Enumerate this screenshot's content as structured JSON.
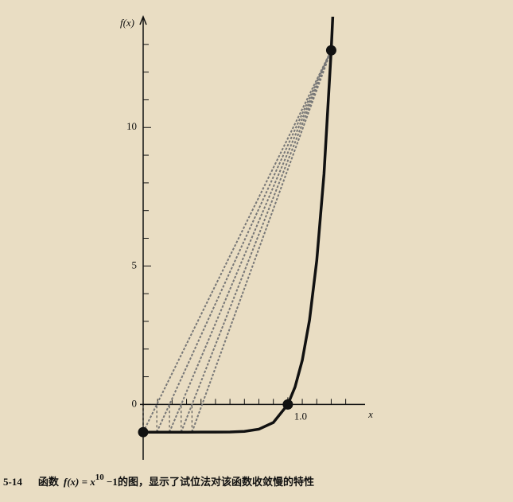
{
  "chart_data": {
    "type": "line",
    "xlabel": "x",
    "ylabel": "f(x)",
    "xlim": [
      0,
      1.6
    ],
    "ylim": [
      -2,
      14
    ],
    "xticks": [
      {
        "value": 1,
        "label": "1.0"
      }
    ],
    "xminorticks": [
      0.1,
      0.2,
      0.3,
      0.4,
      0.5,
      0.6,
      0.7,
      0.8,
      0.9,
      1,
      1.1,
      1.2,
      1.3,
      1.4
    ],
    "yticks": [
      0,
      5,
      10
    ],
    "yminorticks": [
      -1,
      1,
      2,
      3,
      4,
      6,
      7,
      8,
      9,
      11,
      12,
      13
    ],
    "color": "#111111",
    "curve": {
      "x": [
        0,
        0.1,
        0.2,
        0.3,
        0.4,
        0.5,
        0.6,
        0.7,
        0.8,
        0.9,
        1.0,
        1.05,
        1.1,
        1.15,
        1.2,
        1.25,
        1.3,
        1.32
      ],
      "values": [
        -1,
        -1,
        -1,
        -1,
        -0.9999,
        -0.999,
        -0.994,
        -0.972,
        -0.893,
        -0.651,
        0,
        0.629,
        1.594,
        3.046,
        5.192,
        8.313,
        12.786,
        15.06
      ]
    },
    "anchor": {
      "x": 1.3,
      "y": 12.786
    },
    "secant_x": [
      0,
      0.0943,
      0.1818,
      0.2627,
      0.3376
    ],
    "secant_y": [
      -1,
      -1,
      -1,
      -1,
      -1
    ],
    "points": {
      "x": [
        0,
        1.0,
        1.3
      ],
      "values": [
        -1,
        0,
        12.786
      ]
    },
    "caption": {
      "number": "5-14",
      "text_before": "函数",
      "formula": "f(x) = x",
      "exponent": "10",
      "formula_tail": " −1",
      "text_after": "的图，显示了试位法对该函数收敛慢的特性"
    }
  }
}
